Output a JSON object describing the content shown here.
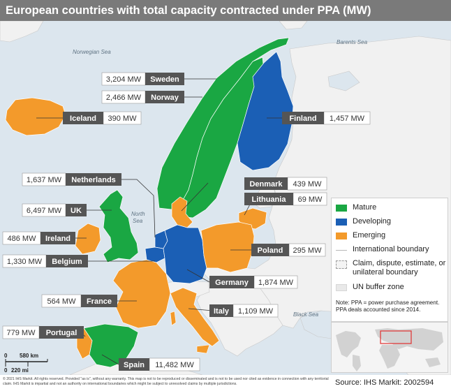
{
  "title": "European countries with total capacity contracted under PPA (MW)",
  "seas": {
    "norwegian_sea": "Norwegian Sea",
    "barents_sea": "Barents Sea",
    "north_sea_1": "North",
    "north_sea_2": "Sea",
    "black_sea": "Black Sea"
  },
  "colors": {
    "mature": "#1aa743",
    "developing": "#1b5fb5",
    "emerging": "#f39a2b",
    "label_box": "#555555",
    "sea": "#dce6ee",
    "land_other": "#f1f1f1"
  },
  "countries": [
    {
      "key": "sweden",
      "name": "Sweden",
      "value": "3,204 MW",
      "status": "mature"
    },
    {
      "key": "norway",
      "name": "Norway",
      "value": "2,466 MW",
      "status": "mature"
    },
    {
      "key": "iceland",
      "name": "Iceland",
      "value": "390 MW",
      "status": "emerging"
    },
    {
      "key": "finland",
      "name": "Finland",
      "value": "1,457 MW",
      "status": "developing"
    },
    {
      "key": "netherlands",
      "name": "Netherlands",
      "value": "1,637 MW",
      "status": "developing"
    },
    {
      "key": "denmark",
      "name": "Denmark",
      "value": "439 MW",
      "status": "emerging"
    },
    {
      "key": "lithuania",
      "name": "Lithuania",
      "value": "69 MW",
      "status": "emerging"
    },
    {
      "key": "uk",
      "name": "UK",
      "value": "6,497 MW",
      "status": "mature"
    },
    {
      "key": "ireland",
      "name": "Ireland",
      "value": "486 MW",
      "status": "emerging"
    },
    {
      "key": "poland",
      "name": "Poland",
      "value": "295 MW",
      "status": "emerging"
    },
    {
      "key": "belgium",
      "name": "Belgium",
      "value": "1,330 MW",
      "status": "developing"
    },
    {
      "key": "germany",
      "name": "Germany",
      "value": "1,874 MW",
      "status": "developing"
    },
    {
      "key": "france",
      "name": "France",
      "value": "564 MW",
      "status": "emerging"
    },
    {
      "key": "italy",
      "name": "Italy",
      "value": "1,109 MW",
      "status": "emerging"
    },
    {
      "key": "portugal",
      "name": "Portugal",
      "value": "779 MW",
      "status": "emerging"
    },
    {
      "key": "spain",
      "name": "Spain",
      "value": "11,482 MW",
      "status": "mature"
    }
  ],
  "legend": {
    "mature": "Mature",
    "developing": "Developing",
    "emerging": "Emerging",
    "international_boundary": "International boundary",
    "claim": "Claim, dispute, estimate, or unilateral boundary",
    "un_buffer": "UN buffer zone",
    "note": "Note: PPA = power purchase agreement. PPA deals accounted since 2014."
  },
  "scale": {
    "zero": "0",
    "top_label": "580 km",
    "bottom_label": "220 mi"
  },
  "footer": {
    "copyright": "© 2021 IHS Markit. All rights reserved. Provided \"as is\", without any warranty. This map is not to be reproduced or disseminated and is not to be used nor cited as evidence in connection with any territorial claim. IHS Markit is impartial and not an authority on international boundaries which might be subject to unresolved claims by multiple jurisdictions.",
    "source": "Source: IHS Markit: 2002594"
  }
}
